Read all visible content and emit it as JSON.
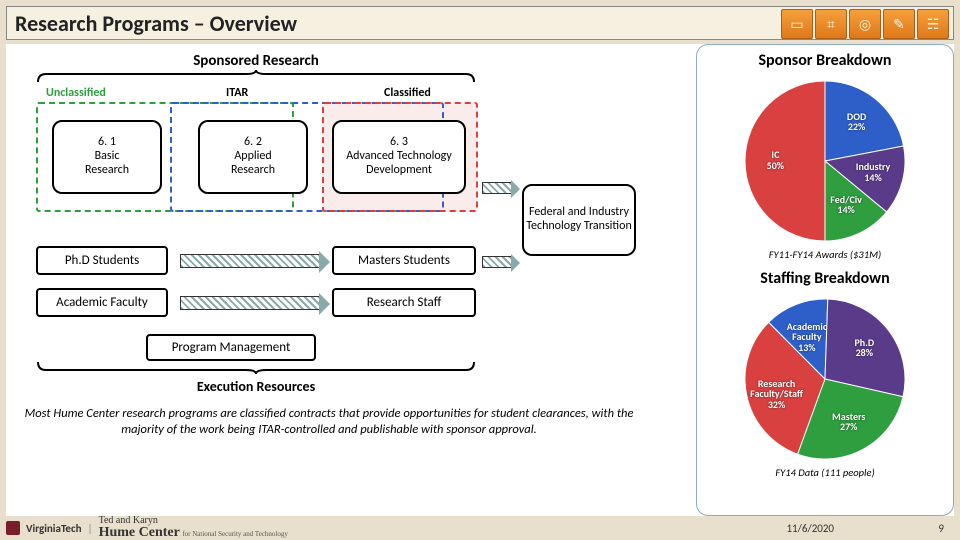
{
  "title": "Research Programs – Overview",
  "header_icons": [
    "book-icon",
    "chip-icon",
    "target-icon",
    "draft-icon",
    "bridge-icon"
  ],
  "sponsored_label": "Sponsored Research",
  "categories": {
    "unclassified": {
      "label": "Unclassified",
      "color": "#2e9e3f"
    },
    "itar": {
      "label": "ITAR",
      "color": "#2e5fc9"
    },
    "classified": {
      "label": "Classified",
      "color": "#d94040"
    }
  },
  "research_boxes": [
    {
      "num": "6. 1",
      "l1": "Basic",
      "l2": "Research"
    },
    {
      "num": "6. 2",
      "l1": "Applied",
      "l2": "Research"
    },
    {
      "num": "6. 3",
      "l1": "Advanced Technology",
      "l2": "Development"
    }
  ],
  "flow": {
    "phd": "Ph.D Students",
    "masters": "Masters Students",
    "faculty": "Academic Faculty",
    "staff": "Research Staff",
    "pm": "Program Management"
  },
  "transition_box": "Federal and Industry Technology Transition",
  "exec_label": "Execution Resources",
  "caption": "Most Hume Center research programs are classified contracts that provide opportunities for student clearances, with the majority of the work being ITAR-controlled and publishable with sponsor approval.",
  "sponsor_breakdown": {
    "title": "Sponsor Breakdown",
    "caption": "FY11-FY14 Awards ($31M)",
    "slices": [
      {
        "label": "IC",
        "value": 50,
        "color": "#d94040"
      },
      {
        "label": "DOD",
        "value": 22,
        "color": "#2e5fc9"
      },
      {
        "label": "Industry",
        "value": 14,
        "color": "#5a3b8a"
      },
      {
        "label": "Fed/Civ",
        "value": 14,
        "color": "#2e9e3f"
      }
    ]
  },
  "staffing_breakdown": {
    "title": "Staffing Breakdown",
    "caption": "FY14 Data (111 people)",
    "slices": [
      {
        "label": "Research Faculty/Staff",
        "value": 32,
        "color": "#d94040"
      },
      {
        "label": "Academic Faculty",
        "value": 13,
        "color": "#2e5fc9"
      },
      {
        "label": "Ph.D",
        "value": 28,
        "color": "#5a3b8a"
      },
      {
        "label": "Masters",
        "value": 27,
        "color": "#2e9e3f"
      }
    ]
  },
  "footer": {
    "vt": "VirginiaTech",
    "hume_top": "Ted and Karyn",
    "hume_main": "Hume Center",
    "hume_sub": "for National Security and Technology",
    "date": "11/6/2020",
    "page": "9"
  },
  "style": {
    "bg": "#e8e0cc",
    "box_border": "#000000",
    "arrow_fill": "#8aa"
  }
}
